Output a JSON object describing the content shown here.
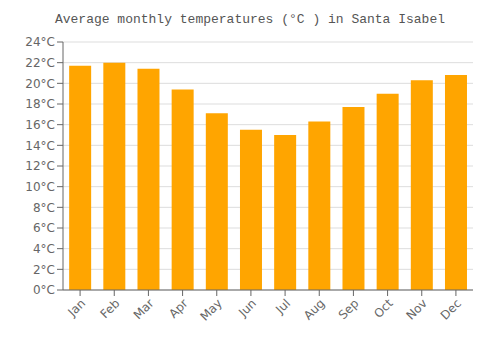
{
  "chart_data": {
    "type": "bar",
    "title": "Average monthly temperatures (°C ) in Santa Isabel",
    "categories": [
      "Jan",
      "Feb",
      "Mar",
      "Apr",
      "May",
      "Jun",
      "Jul",
      "Aug",
      "Sep",
      "Oct",
      "Nov",
      "Dec"
    ],
    "values": [
      21.7,
      22.0,
      21.4,
      19.4,
      17.1,
      15.5,
      15.0,
      16.3,
      17.7,
      19.0,
      20.3,
      20.8
    ],
    "color": "#FFA500",
    "ylim": [
      0,
      24
    ],
    "yticks": [
      {
        "value": 0,
        "label": "0°C"
      },
      {
        "value": 2,
        "label": "2°C"
      },
      {
        "value": 4,
        "label": "4°C"
      },
      {
        "value": 6,
        "label": "6°C"
      },
      {
        "value": 8,
        "label": "8°C"
      },
      {
        "value": 10,
        "label": "10°C"
      },
      {
        "value": 12,
        "label": "12°C"
      },
      {
        "value": 14,
        "label": "14°C"
      },
      {
        "value": 16,
        "label": "16°C"
      },
      {
        "value": 18,
        "label": "18°C"
      },
      {
        "value": 20,
        "label": "20°C"
      },
      {
        "value": 22,
        "label": "22°C"
      },
      {
        "value": 24,
        "label": "24°C"
      }
    ],
    "grid": true
  }
}
